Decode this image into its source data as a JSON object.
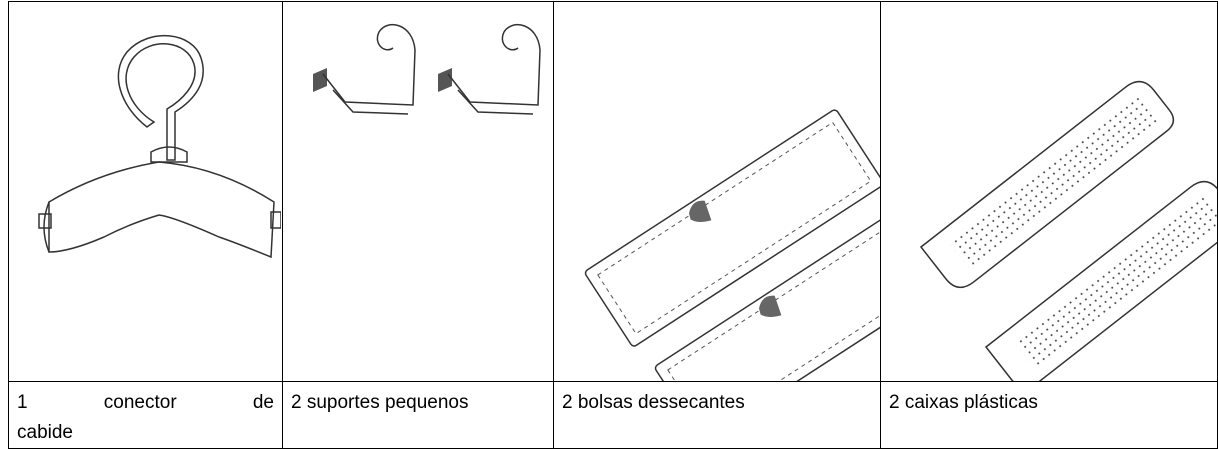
{
  "items": [
    {
      "label": "1 conector de cabide"
    },
    {
      "label": "2 suportes pequenos"
    },
    {
      "label": "2 bolsas dessecantes"
    },
    {
      "label": "2 caixas plásticas"
    }
  ]
}
